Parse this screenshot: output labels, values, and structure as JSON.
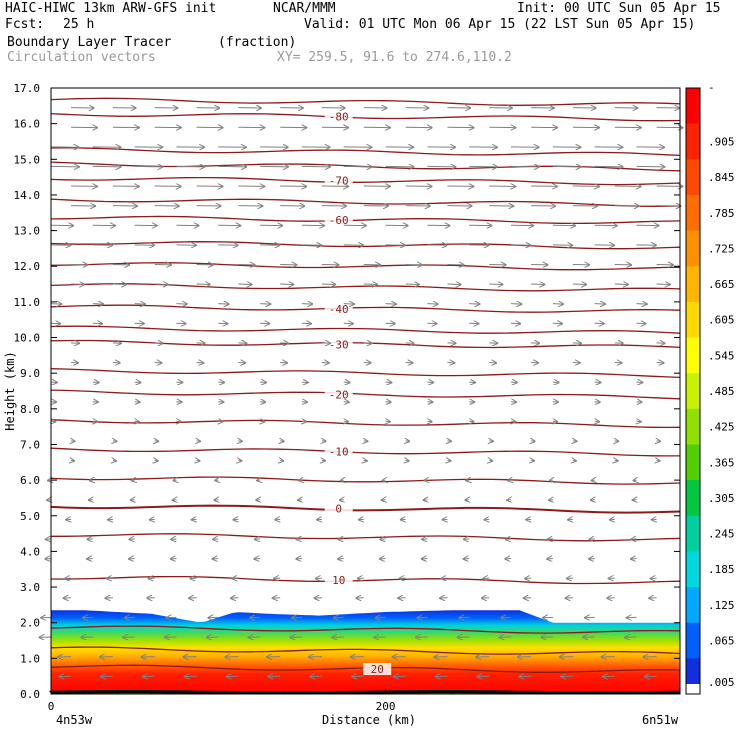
{
  "header": {
    "model": "HAIC-HIWC 13km ARW-GFS init",
    "org": "NCAR/MMM",
    "init": "Init: 00 UTC Sun 05 Apr 15",
    "fcst_label": "Fcst:",
    "fcst_value": "25 h",
    "valid": "Valid: 01 UTC Mon 06 Apr 15 (22 LST Sun 05 Apr 15)",
    "field": "Boundary Layer Tracer",
    "units": "(fraction)",
    "vectors": "Circulation vectors",
    "xy": "XY= 259.5, 91.6 to 274.6,110.2"
  },
  "colors": {
    "contour": "#8b1a1a",
    "arrow": "#808080",
    "terrain": "#000000",
    "frame": "#000000"
  },
  "chart_data": {
    "type": "heatmap",
    "xlabel": "Distance (km)",
    "ylabel": "Height (km)",
    "xlim": [
      0,
      376
    ],
    "ylim": [
      0,
      17
    ],
    "x_ticks": [
      0,
      200
    ],
    "x_tick_labels": [
      "0",
      "200"
    ],
    "x_endpoints": [
      "4n53w",
      "6n51w"
    ],
    "y_ticks": [
      0,
      1,
      2,
      3,
      4,
      5,
      6,
      7,
      8,
      9,
      10,
      11,
      12,
      13,
      14,
      15,
      16,
      17
    ],
    "y_tick_labels": [
      "0.0",
      "1.0",
      "2.0",
      "3.0",
      "4.0",
      "5.0",
      "6.0",
      "7.0",
      "8.0",
      "9.0",
      "10.0",
      "11.0",
      "12.0",
      "13.0",
      "14.0",
      "15.0",
      "16.0",
      "17.0"
    ],
    "colorbar": {
      "labels": [
        "-",
        ".905",
        ".845",
        ".785",
        ".725",
        ".665",
        ".605",
        ".545",
        ".485",
        ".425",
        ".365",
        ".305",
        ".245",
        ".185",
        ".125",
        ".065",
        ".005"
      ],
      "colors": [
        "#ff0000",
        "#ff2400",
        "#ff4800",
        "#ff6c00",
        "#ff9000",
        "#ffb400",
        "#ffd800",
        "#ffff00",
        "#c8f000",
        "#90e000",
        "#50d000",
        "#00c840",
        "#00d0a0",
        "#00d8e0",
        "#00a8ff",
        "#0060ff",
        "#1030e0"
      ]
    },
    "tracer_top_km": [
      [
        0,
        2.35
      ],
      [
        20,
        2.35
      ],
      [
        60,
        2.25
      ],
      [
        90,
        2.0
      ],
      [
        110,
        2.3
      ],
      [
        130,
        2.25
      ],
      [
        160,
        2.2
      ],
      [
        200,
        2.3
      ],
      [
        240,
        2.35
      ],
      [
        280,
        2.35
      ],
      [
        300,
        2.0
      ],
      [
        376,
        2.0
      ]
    ],
    "temperature_contours_c": [
      {
        "level": -80,
        "label": "-80",
        "height_km": 16.2
      },
      {
        "level": -70,
        "label": "-70",
        "height_km": 14.4
      },
      {
        "level": -60,
        "label": "-60",
        "height_km": 13.3
      },
      {
        "level": -40,
        "label": "-40",
        "height_km": 10.8
      },
      {
        "level": -30,
        "label": "-30",
        "height_km": 9.8
      },
      {
        "level": -20,
        "label": "-20",
        "height_km": 8.4
      },
      {
        "level": -10,
        "label": "-10",
        "height_km": 6.8
      },
      {
        "level": 0,
        "label": "0",
        "height_km": 5.2
      },
      {
        "level": 10,
        "label": "10",
        "height_km": 3.2
      },
      {
        "level": 20,
        "label": "20",
        "height_km": 0.7
      }
    ],
    "other_contour_heights_km": [
      16.6,
      15.2,
      14.8,
      13.8,
      12.6,
      12.0,
      11.4,
      10.2,
      9.0,
      7.6,
      6.0,
      4.4,
      1.8,
      1.2
    ],
    "wind_speed_by_height": [
      [
        0,
        -0.6
      ],
      [
        1,
        -0.8
      ],
      [
        2,
        -0.6
      ],
      [
        3,
        -0.3
      ],
      [
        5,
        -0.2
      ],
      [
        7,
        0.1
      ],
      [
        9,
        0.3
      ],
      [
        11,
        0.6
      ],
      [
        13,
        1.4
      ],
      [
        15,
        1.9
      ],
      [
        16,
        1.7
      ],
      [
        17,
        1.2
      ]
    ]
  }
}
